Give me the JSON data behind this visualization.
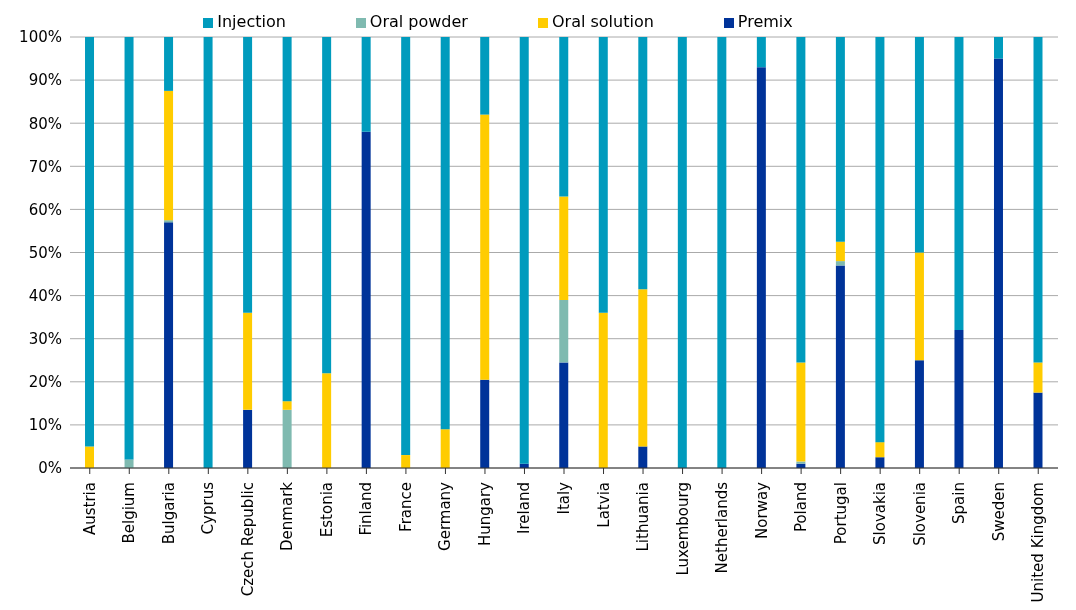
{
  "chart_data": {
    "type": "bar",
    "stacked": true,
    "categories": [
      "Austria",
      "Belgium",
      "Bulgaria",
      "Cyprus",
      "Czech Republic",
      "Denmark",
      "Estonia",
      "Finland",
      "France",
      "Germany",
      "Hungary",
      "Ireland",
      "Italy",
      "Latvia",
      "Lithuania",
      "Luxembourg",
      "Netherlands",
      "Norway",
      "Poland",
      "Portugal",
      "Slovakia",
      "Slovenia",
      "Spain",
      "Sweden",
      "United Kingdom"
    ],
    "series": [
      {
        "name": "Premix",
        "color": "#003399",
        "values": [
          0,
          0,
          57,
          0,
          13.5,
          0,
          0,
          78,
          0,
          0,
          20.5,
          1,
          24.5,
          0,
          5,
          0,
          0,
          93,
          1,
          47,
          2.5,
          25,
          32,
          95,
          17.5
        ]
      },
      {
        "name": "Oral powder",
        "color": "#7fbab0",
        "values": [
          0,
          2,
          0.5,
          0,
          0,
          13.5,
          0,
          0,
          0,
          0,
          0,
          0,
          14.5,
          0,
          0,
          0,
          0,
          0,
          0.5,
          1,
          0,
          0,
          0,
          0,
          0
        ]
      },
      {
        "name": "Oral solution",
        "color": "#ffcc00",
        "values": [
          5,
          0,
          30,
          0,
          22.5,
          2,
          22,
          0,
          3,
          9,
          61.5,
          0,
          24,
          36,
          36.5,
          0,
          0,
          0,
          23,
          4.5,
          3.5,
          25,
          0,
          0,
          7
        ]
      },
      {
        "name": "Injection",
        "color": "#009bbd",
        "values": [
          95,
          98,
          12.5,
          100,
          64,
          84.5,
          78,
          22,
          97,
          91,
          18,
          99,
          37,
          64,
          58.5,
          100,
          100,
          7,
          75.5,
          47.5,
          94,
          50,
          68,
          5,
          75.5
        ]
      }
    ],
    "ylim": [
      0,
      100
    ],
    "yticks": [
      {
        "value": 0,
        "label": "0%"
      },
      {
        "value": 10,
        "label": "10%"
      },
      {
        "value": 20,
        "label": "20%"
      },
      {
        "value": 30,
        "label": "30%"
      },
      {
        "value": 40,
        "label": "40%"
      },
      {
        "value": 50,
        "label": "50%"
      },
      {
        "value": 60,
        "label": "60%"
      },
      {
        "value": 70,
        "label": "70%"
      },
      {
        "value": 80,
        "label": "80%"
      },
      {
        "value": 90,
        "label": "90%"
      },
      {
        "value": 100,
        "label": "100%"
      }
    ],
    "grid": "y",
    "legend": "top"
  }
}
